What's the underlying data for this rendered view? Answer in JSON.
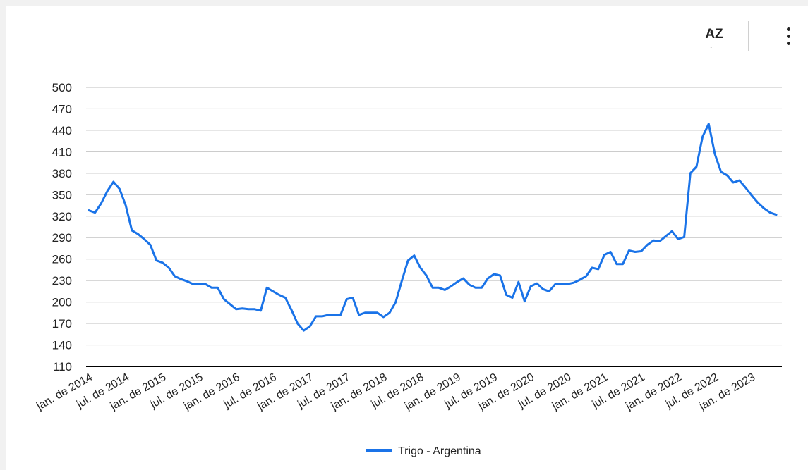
{
  "toolbar": {
    "sort_label": "AZ",
    "sort_icon": "sort-az-icon",
    "more_icon": "more-vert-icon"
  },
  "colors": {
    "series": "#1a73e8",
    "grid": "#cccccc",
    "baseline": "#000000"
  },
  "chart_data": {
    "type": "line",
    "title": "",
    "xlabel": "",
    "ylabel": "",
    "ylim": [
      110,
      500
    ],
    "yticks": [
      110,
      140,
      170,
      200,
      230,
      260,
      290,
      320,
      350,
      380,
      410,
      440,
      470,
      500
    ],
    "grid": true,
    "legend_position": "bottom",
    "x_tick_labels": [
      "jan. de 2014",
      "jul. de 2014",
      "jan. de 2015",
      "jul. de 2015",
      "jan. de 2016",
      "jul. de 2016",
      "jan. de 2017",
      "jul. de 2017",
      "jan. de 2018",
      "jul. de 2018",
      "jan. de 2019",
      "jul. de 2019",
      "jan. de 2020",
      "jul. de 2020",
      "jan. de 2021",
      "jul. de 2021",
      "jan. de 2022",
      "jul. de 2022",
      "jan. de 2023"
    ],
    "x_start": "2014-01",
    "series": [
      {
        "name": "Trigo - Argentina",
        "values": [
          328,
          325,
          338,
          355,
          368,
          358,
          335,
          300,
          295,
          288,
          280,
          258,
          255,
          248,
          236,
          232,
          229,
          225,
          225,
          225,
          220,
          220,
          204,
          197,
          190,
          191,
          190,
          190,
          188,
          220,
          215,
          210,
          206,
          189,
          170,
          160,
          166,
          180,
          180,
          182,
          182,
          182,
          204,
          206,
          182,
          185,
          185,
          185,
          179,
          185,
          200,
          230,
          258,
          265,
          248,
          237,
          220,
          220,
          217,
          222,
          228,
          233,
          224,
          220,
          220,
          233,
          239,
          237,
          210,
          206,
          228,
          201,
          222,
          226,
          218,
          215,
          225,
          225,
          225,
          227,
          231,
          236,
          248,
          246,
          266,
          270,
          253,
          253,
          272,
          270,
          271,
          280,
          286,
          285,
          292,
          299,
          288,
          291,
          380,
          389,
          431,
          449,
          407,
          382,
          377,
          367,
          370,
          360,
          349,
          339,
          331,
          325,
          322
        ]
      }
    ]
  }
}
